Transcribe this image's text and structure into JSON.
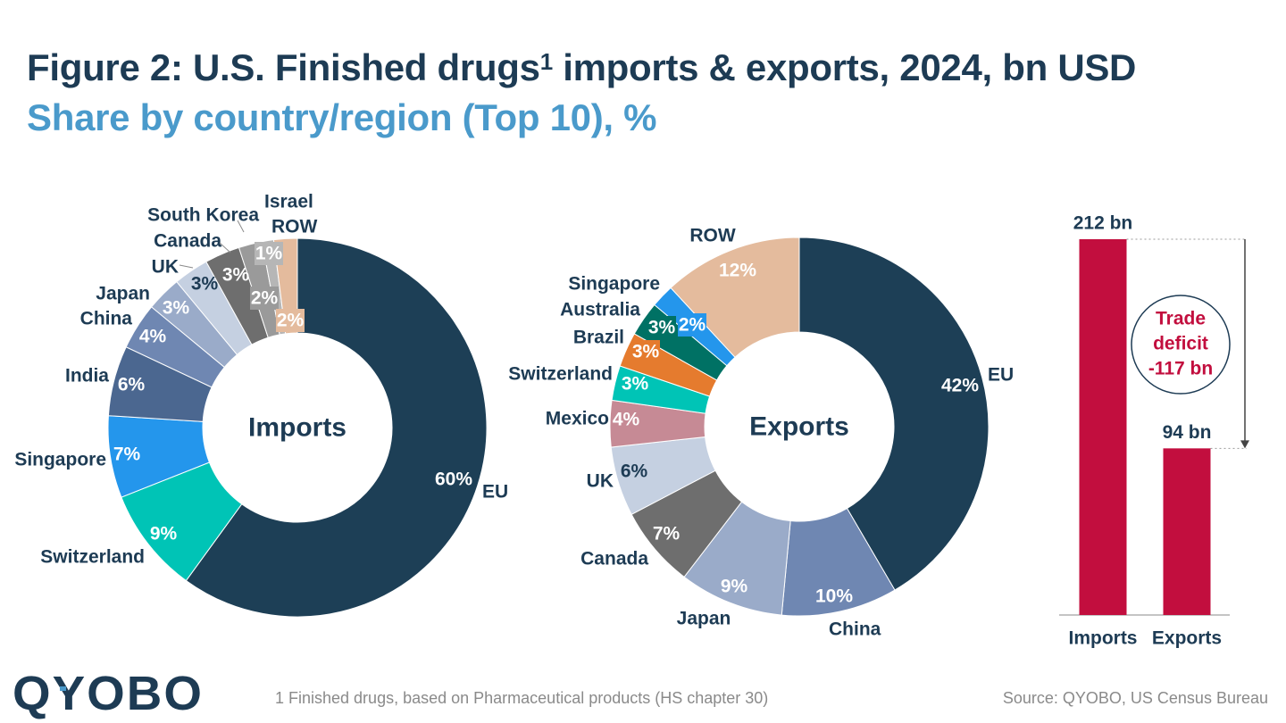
{
  "header": {
    "title": "Figure 2: U.S. Finished drugs",
    "title_sup": "1",
    "title_rest": " imports & exports, 2024, bn USD",
    "subtitle": "Share by country/region (Top 10), %"
  },
  "footer": {
    "footnote": "1 Finished drugs, based on Pharmaceutical products (HS chapter 30)",
    "source": "Source: QYOBO, US Census Bureau",
    "logo_text": "QYOBO"
  },
  "colors": {
    "title": "#1d3b54",
    "subtitle": "#4a9acb",
    "bar": "#c20e3e",
    "deficit_text": "#c20e3e",
    "label": "#1d3b54"
  },
  "chart_data": [
    {
      "type": "pie",
      "center_label": "Imports",
      "slices": [
        {
          "name": "EU",
          "value": 60,
          "label": "60%",
          "color": "#1d3f56"
        },
        {
          "name": "Switzerland",
          "value": 9,
          "label": "9%",
          "color": "#00c4b6"
        },
        {
          "name": "Singapore",
          "value": 7,
          "label": "7%",
          "color": "#2496ec"
        },
        {
          "name": "India",
          "value": 6,
          "label": "6%",
          "color": "#4b6790"
        },
        {
          "name": "China",
          "value": 4,
          "label": "4%",
          "color": "#6f87b2"
        },
        {
          "name": "Japan",
          "value": 3,
          "label": "3%",
          "color": "#9aabc9"
        },
        {
          "name": "UK",
          "value": 3,
          "label": "3%",
          "color": "#c5d0e1"
        },
        {
          "name": "Canada",
          "value": 3,
          "label": "3%",
          "color": "#6e6e6e"
        },
        {
          "name": "South Korea",
          "value": 2,
          "label": "2%",
          "color": "#9a9a9a"
        },
        {
          "name": "Israel",
          "value": 1,
          "label": "1%",
          "color": "#b6b6b6"
        },
        {
          "name": "ROW",
          "value": 2,
          "label": "2%",
          "color": "#e4bb9d"
        }
      ]
    },
    {
      "type": "pie",
      "center_label": "Exports",
      "slices": [
        {
          "name": "EU",
          "value": 42,
          "label": "42%",
          "color": "#1d3f56"
        },
        {
          "name": "China",
          "value": 10,
          "label": "10%",
          "color": "#6f87b2"
        },
        {
          "name": "Japan",
          "value": 9,
          "label": "9%",
          "color": "#9aabc9"
        },
        {
          "name": "Canada",
          "value": 7,
          "label": "7%",
          "color": "#6e6e6e"
        },
        {
          "name": "UK",
          "value": 6,
          "label": "6%",
          "color": "#c5d0e1"
        },
        {
          "name": "Mexico",
          "value": 4,
          "label": "4%",
          "color": "#c68a95"
        },
        {
          "name": "Switzerland",
          "value": 3,
          "label": "3%",
          "color": "#00c4b6"
        },
        {
          "name": "Brazil",
          "value": 3,
          "label": "3%",
          "color": "#e57b2e"
        },
        {
          "name": "Australia",
          "value": 3,
          "label": "3%",
          "color": "#007164"
        },
        {
          "name": "Singapore",
          "value": 2,
          "label": "2%",
          "color": "#2496ec"
        },
        {
          "name": "ROW",
          "value": 12,
          "label": "12%",
          "color": "#e4bb9d"
        }
      ]
    },
    {
      "type": "bar",
      "categories": [
        "Imports",
        "Exports"
      ],
      "values": [
        212,
        94
      ],
      "value_labels": [
        "212 bn",
        "94 bn"
      ],
      "annotation": [
        "Trade",
        "deficit",
        "-117 bn"
      ]
    }
  ]
}
